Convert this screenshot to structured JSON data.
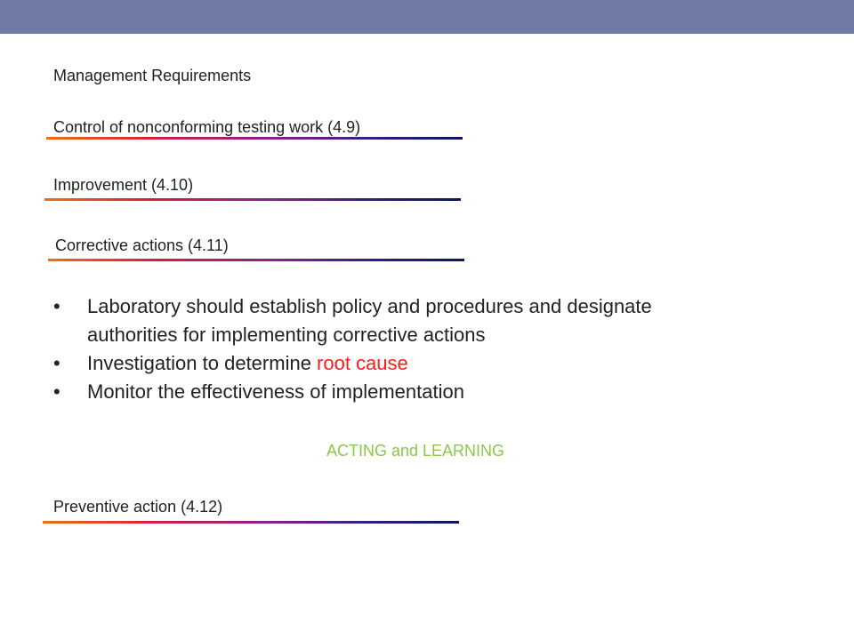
{
  "colors": {
    "header_bar": "#6f7aa6",
    "root_cause": "#ff1a1a",
    "acting_learning": "#8ac84a"
  },
  "slide": {
    "title": "Management Requirements",
    "sections": [
      {
        "label": "Control of nonconforming testing work (4.9)"
      },
      {
        "label": "Improvement (4.10)"
      },
      {
        "label": "Corrective actions (4.11)"
      },
      {
        "label": "Preventive action (4.12)"
      }
    ],
    "bullets": [
      {
        "text": "Laboratory should establish policy and procedures and designate authorities for implementing corrective actions"
      },
      {
        "text": "Investigation to determine ",
        "highlight": "root cause"
      },
      {
        "text": "Monitor the effectiveness of implementation"
      }
    ],
    "bullet_symbol": "•",
    "center_note": "ACTING and LEARNING"
  }
}
